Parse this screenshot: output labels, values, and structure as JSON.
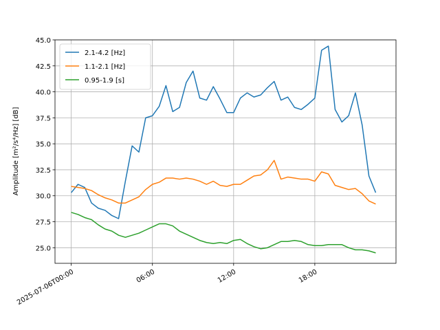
{
  "chart_data": {
    "type": "line",
    "ylabel": "Amplitude [m²/s⁴/Hz] [dB]",
    "ylim": [
      23.5,
      45.0
    ],
    "y_ticks": [
      "25.0",
      "27.5",
      "30.0",
      "32.5",
      "35.0",
      "37.5",
      "40.0",
      "42.5",
      "45.0"
    ],
    "x_ticks": [
      "2025-07-06T00:00",
      "06:00",
      "12:00",
      "18:00"
    ],
    "grid": true,
    "legend_position": "top-left",
    "x_hours": [
      0,
      0.5,
      1,
      1.5,
      2,
      2.5,
      3,
      3.5,
      4,
      4.5,
      5,
      5.5,
      6,
      6.5,
      7,
      7.5,
      8,
      8.5,
      9,
      9.5,
      10,
      10.5,
      11,
      11.5,
      12,
      12.5,
      13,
      13.5,
      14,
      14.5,
      15,
      15.5,
      16,
      16.5,
      17,
      17.5,
      18,
      18.5,
      19,
      19.5,
      20,
      20.5,
      21,
      21.5,
      22,
      22.5,
      23,
      23.5
    ],
    "series": [
      {
        "name": "2.1-4.2 [Hz]",
        "color": "#1f77b4",
        "values": [
          30.3,
          31.1,
          30.8,
          29.3,
          28.8,
          28.6,
          28.1,
          27.8,
          31.4,
          34.8,
          34.2,
          37.5,
          37.7,
          38.6,
          40.6,
          38.1,
          38.5,
          40.9,
          42.0,
          39.4,
          39.2,
          40.5,
          39.3,
          38.0,
          38.0,
          39.4,
          39.9,
          39.5,
          39.7,
          40.4,
          41.0,
          39.2,
          39.5,
          38.5,
          38.3,
          38.8,
          39.4,
          44.0,
          44.4,
          38.3,
          37.1,
          37.7,
          39.9,
          36.8,
          31.9,
          30.3,
          null,
          null
        ]
      },
      {
        "name": "1.1-2.1 [Hz]",
        "color": "#ff7f0e",
        "values": [
          30.9,
          30.8,
          30.7,
          30.5,
          30.1,
          29.8,
          29.6,
          29.3,
          29.3,
          29.6,
          29.9,
          30.6,
          31.1,
          31.3,
          31.7,
          31.7,
          31.6,
          31.7,
          31.6,
          31.4,
          31.1,
          31.4,
          31.0,
          30.9,
          31.1,
          31.1,
          31.5,
          31.9,
          32.0,
          32.5,
          33.4,
          31.6,
          31.8,
          31.7,
          31.6,
          31.6,
          31.4,
          32.3,
          32.1,
          31.0,
          30.8,
          30.6,
          30.7,
          30.2,
          29.5,
          29.2,
          null,
          null
        ]
      },
      {
        "name": "0.95-1.9 [s]",
        "color": "#2ca02c",
        "values": [
          28.4,
          28.2,
          27.9,
          27.7,
          27.2,
          26.8,
          26.6,
          26.2,
          26.0,
          26.2,
          26.4,
          26.7,
          27.0,
          27.3,
          27.3,
          27.1,
          26.6,
          26.3,
          26.0,
          25.7,
          25.5,
          25.4,
          25.5,
          25.4,
          25.7,
          25.8,
          25.4,
          25.1,
          24.9,
          25.0,
          25.3,
          25.6,
          25.6,
          25.7,
          25.6,
          25.3,
          25.2,
          25.2,
          25.3,
          25.3,
          25.3,
          25.0,
          24.8,
          24.8,
          24.7,
          24.5,
          null,
          null
        ]
      }
    ]
  }
}
